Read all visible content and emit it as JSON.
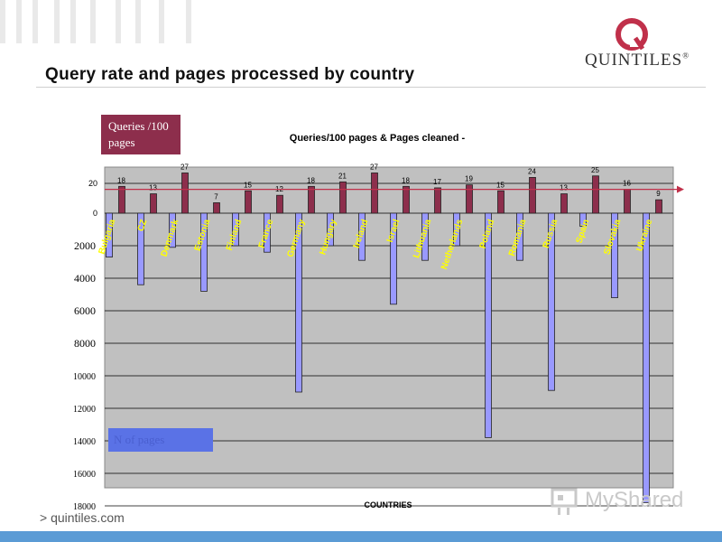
{
  "header": {
    "title": "Query rate and pages processed by country"
  },
  "logo": {
    "text": "QUINTILES",
    "registered": "®",
    "icon": "quintiles-ring-logo"
  },
  "footer": {
    "url": "> quintiles.com"
  },
  "watermark": {
    "text": "MyShared",
    "icon": "myshared-icon"
  },
  "legend": {
    "queries_label": "Queries /100 pages",
    "pages_label": "N of pages"
  },
  "colors": {
    "plot_bg": "#c0c0c0",
    "queries_bar": "#8d2e4c",
    "pages_bar": "#9999ff",
    "reference_line": "#c0304a",
    "label_yellow": "#ffff00"
  },
  "chart_data": {
    "type": "bar",
    "title": "Queries/100 pages & Pages cleaned -",
    "xlabel": "COUNTRIES",
    "categories": [
      "Bulgaria",
      "CZ",
      "Denmark",
      "Estonia",
      "Finland",
      "France",
      "Germany",
      "Hungary",
      "Ireland",
      "Israel",
      "Lithuania",
      "Netherlands",
      "Poland",
      "Romania",
      "Russia",
      "Spain",
      "Slovakia",
      "Ukraine"
    ],
    "series": [
      {
        "name": "Queries /100 pages",
        "values": [
          18,
          13,
          27,
          7,
          15,
          12,
          18,
          21,
          27,
          18,
          17,
          19,
          15,
          24,
          13,
          25,
          16,
          9
        ]
      },
      {
        "name": "N of pages",
        "values": [
          2700,
          4400,
          2100,
          4800,
          2000,
          2400,
          11000,
          2000,
          2900,
          5600,
          2900,
          2000,
          13800,
          2900,
          10900,
          800,
          5200,
          17800
        ]
      }
    ],
    "queries_ticks": [
      "20",
      "0"
    ],
    "queries_ylim": [
      0,
      30
    ],
    "pages_ticks": [
      "2000",
      "4000",
      "6000",
      "8000",
      "10000",
      "12000",
      "14000",
      "16000",
      "18000"
    ],
    "pages_ylim": [
      0,
      18000
    ],
    "reference_value": 16,
    "grid": true
  }
}
